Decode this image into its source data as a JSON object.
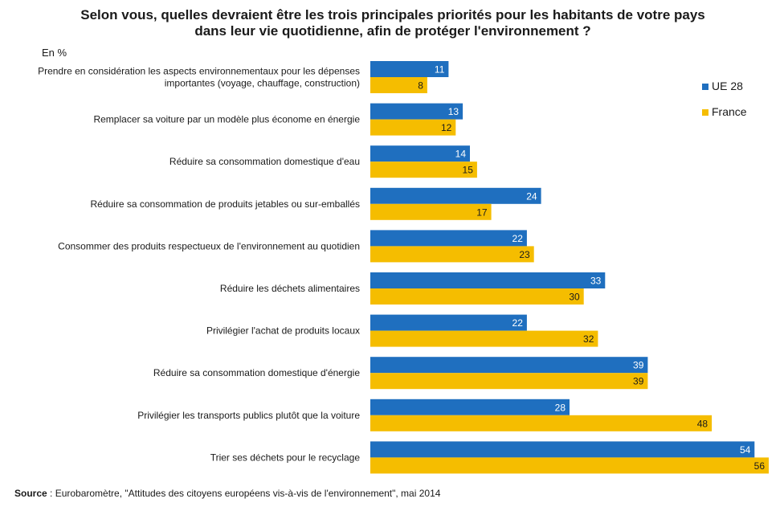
{
  "chart_data": {
    "type": "bar",
    "orientation": "horizontal",
    "title": [
      "Selon vous, quelles devraient être les trois principales priorités pour les habitants de votre pays",
      "dans leur vie quotidienne, afin de protéger l'environnement ?"
    ],
    "unit_label": "En %",
    "categories": [
      [
        "Prendre en considération les aspects environnementaux pour les dépenses",
        "importantes (voyage, chauffage, construction)"
      ],
      [
        "Remplacer sa voiture par un modèle plus économe en énergie"
      ],
      [
        "Réduire sa consommation domestique d'eau"
      ],
      [
        "Réduire sa consommation de produits jetables ou sur-emballés"
      ],
      [
        "Consommer des produits respectueux de l'environnement au quotidien"
      ],
      [
        "Réduire les déchets alimentaires"
      ],
      [
        "Privilégier l'achat de produits locaux"
      ],
      [
        "Réduire sa consommation domestique d'énergie"
      ],
      [
        "Privilégier les transports publics plutôt que la voiture"
      ],
      [
        "Trier ses déchets pour le recyclage"
      ]
    ],
    "series": [
      {
        "name": "UE 28",
        "color": "#1f6fbf",
        "label_color": "#ffffff",
        "values": [
          11,
          13,
          14,
          24,
          22,
          33,
          22,
          39,
          28,
          54
        ]
      },
      {
        "name": "France",
        "color": "#f5bd00",
        "label_color": "#1a1a1a",
        "values": [
          8,
          12,
          15,
          17,
          23,
          30,
          32,
          39,
          48,
          56
        ]
      }
    ],
    "xlim": [
      0,
      56
    ],
    "grid": false,
    "legend_position": "top-right"
  },
  "source": {
    "label": "Source",
    "text": " : Eurobaromètre,  \"Attitudes des citoyens européens vis-à-vis  de l'environnement\",  mai 2014"
  }
}
